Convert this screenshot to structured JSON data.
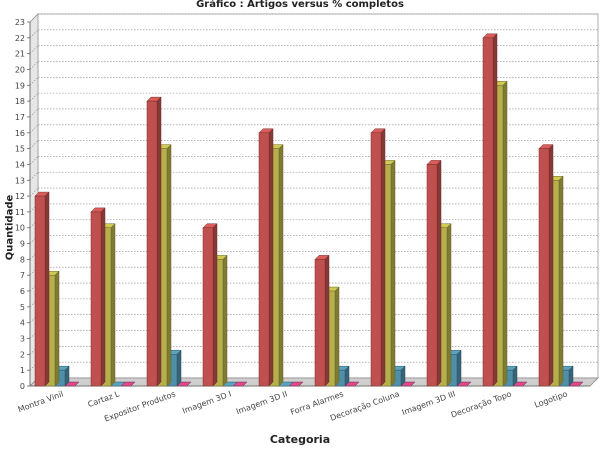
{
  "chart_data": {
    "type": "bar",
    "title": "Gráfico : Artigos versus % completos",
    "xlabel": "Categoria",
    "ylabel": "Quantidade",
    "ylim": [
      0,
      23
    ],
    "yticks": [
      0,
      1,
      2,
      3,
      4,
      5,
      6,
      7,
      8,
      9,
      10,
      11,
      12,
      13,
      14,
      15,
      16,
      17,
      18,
      19,
      20,
      21,
      22,
      23
    ],
    "grid": true,
    "categories": [
      "Montra Vinil",
      "Cartaz L",
      "Expositor Produtos",
      "Imagem 3D I",
      "Imagem 3D II",
      "Forra Alarmes",
      "Decoração Coluna",
      "Imagem 3D III",
      "Decoração Topo",
      "Logotipo"
    ],
    "series": [
      {
        "color": "#c0504d",
        "values": [
          12,
          11,
          18,
          10,
          16,
          8,
          16,
          14,
          22,
          15
        ]
      },
      {
        "color": "#b5b04a",
        "values": [
          7,
          10,
          15,
          8,
          15,
          6,
          14,
          10,
          19,
          13
        ]
      },
      {
        "color": "#4f8fa8",
        "values": [
          1,
          0,
          2,
          0,
          0,
          1,
          1,
          2,
          1,
          1
        ]
      },
      {
        "color": "#c0407a",
        "values": [
          0,
          0,
          0,
          0,
          0,
          0,
          0,
          0,
          0,
          0
        ]
      }
    ]
  }
}
